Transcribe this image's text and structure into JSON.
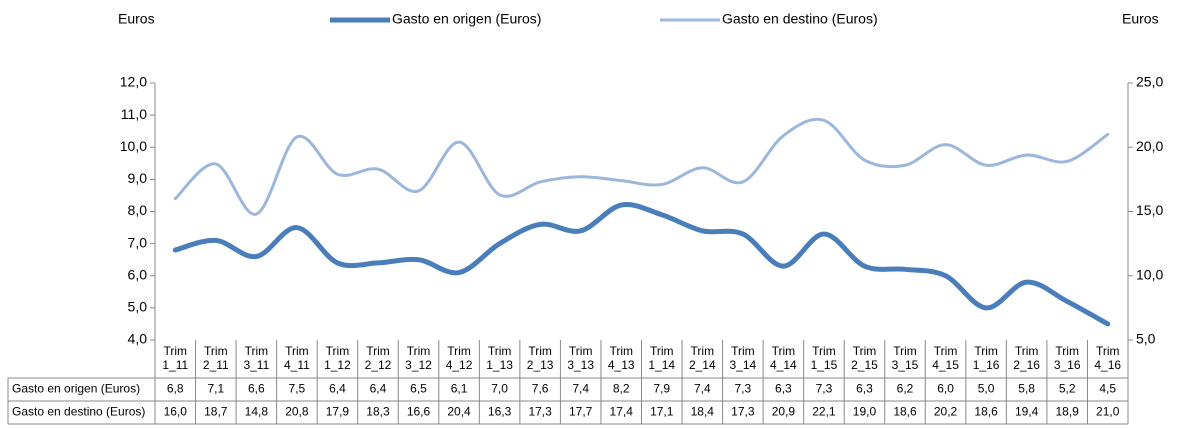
{
  "chart_data": {
    "type": "line",
    "y_label": "Euros",
    "y2_label": "Euros",
    "categories": [
      "Trim 1_11",
      "Trim 2_11",
      "Trim 3_11",
      "Trim 4_11",
      "Trim 1_12",
      "Trim 2_12",
      "Trim 3_12",
      "Trim 4_12",
      "Trim 1_13",
      "Trim 2_13",
      "Trim 3_13",
      "Trim 4_13",
      "Trim 1_14",
      "Trim 2_14",
      "Trim 3_14",
      "Trim 4_14",
      "Trim 1_15",
      "Trim 2_15",
      "Trim 3_15",
      "Trim 4_15",
      "Trim 1_16",
      "Trim 2_16",
      "Trim 3_16",
      "Trim 4_16"
    ],
    "series": [
      {
        "name": "Gasto en origen (Euros)",
        "color": "#4a7ebb",
        "axis": "y",
        "values": [
          6.8,
          7.1,
          6.6,
          7.5,
          6.4,
          6.4,
          6.5,
          6.1,
          7.0,
          7.6,
          7.4,
          8.2,
          7.9,
          7.4,
          7.3,
          6.3,
          7.3,
          6.3,
          6.2,
          6.0,
          5.0,
          5.8,
          5.2,
          4.5
        ],
        "value_labels": [
          "6,8",
          "7,1",
          "6,6",
          "7,5",
          "6,4",
          "6,4",
          "6,5",
          "6,1",
          "7,0",
          "7,6",
          "7,4",
          "8,2",
          "7,9",
          "7,4",
          "7,3",
          "6,3",
          "7,3",
          "6,3",
          "6,2",
          "6,0",
          "5,0",
          "5,8",
          "5,2",
          "4,5"
        ]
      },
      {
        "name": "Gasto en destino (Euros)",
        "color": "#9bb7d9",
        "axis": "y2",
        "values": [
          16.0,
          18.7,
          14.8,
          20.8,
          17.9,
          18.3,
          16.6,
          20.4,
          16.3,
          17.3,
          17.7,
          17.4,
          17.1,
          18.4,
          17.3,
          20.9,
          22.1,
          19.0,
          18.6,
          20.2,
          18.6,
          19.4,
          18.9,
          21.0
        ],
        "value_labels": [
          "16,0",
          "18,7",
          "14,8",
          "20,8",
          "17,9",
          "18,3",
          "16,6",
          "20,4",
          "16,3",
          "17,3",
          "17,7",
          "17,4",
          "17,1",
          "18,4",
          "17,3",
          "20,9",
          "22,1",
          "19,0",
          "18,6",
          "20,2",
          "18,6",
          "19,4",
          "18,9",
          "21,0"
        ]
      }
    ],
    "ylim": [
      4,
      12
    ],
    "yticks": [
      {
        "value": 4,
        "label": "4,0"
      },
      {
        "value": 5,
        "label": "5,0"
      },
      {
        "value": 6,
        "label": "6,0"
      },
      {
        "value": 7,
        "label": "7,0"
      },
      {
        "value": 8,
        "label": "8,0"
      },
      {
        "value": 9,
        "label": "9,0"
      },
      {
        "value": 10,
        "label": "10,0"
      },
      {
        "value": 11,
        "label": "11,0"
      },
      {
        "value": 12,
        "label": "12,0"
      }
    ],
    "y2lim": [
      5,
      25
    ],
    "y2ticks": [
      {
        "value": 5,
        "label": "5,0"
      },
      {
        "value": 10,
        "label": "10,0"
      },
      {
        "value": 15,
        "label": "15,0"
      },
      {
        "value": 20,
        "label": "20,0"
      },
      {
        "value": 25,
        "label": "25,0"
      }
    ],
    "legend": "top",
    "grid": false
  }
}
